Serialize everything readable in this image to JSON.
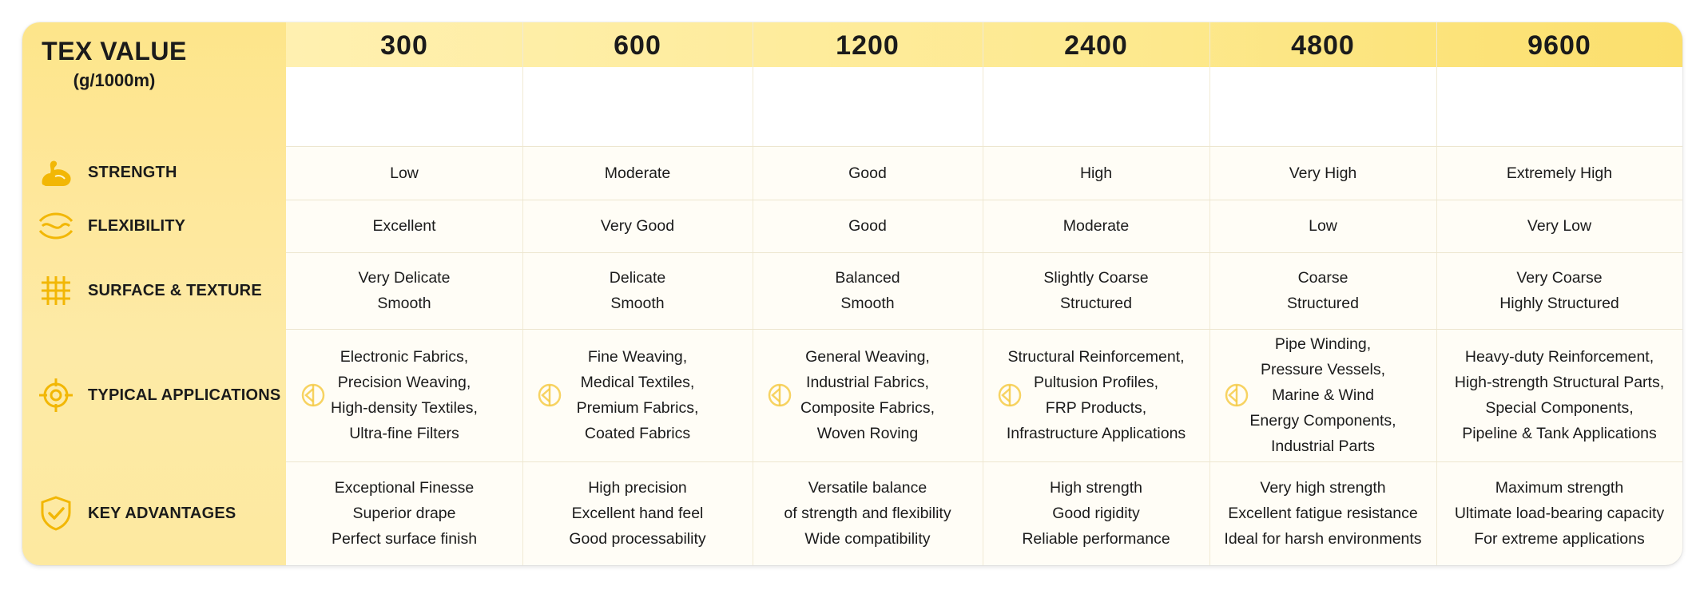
{
  "header": {
    "title": "TEX VALUE",
    "unit": "(g/1000m)"
  },
  "columns": [
    "300",
    "600",
    "1200",
    "2400",
    "4800",
    "9600"
  ],
  "rows": [
    {
      "label": "STRENGTH",
      "icon": "flexed-arm-icon",
      "cells": [
        [
          "Low"
        ],
        [
          "Moderate"
        ],
        [
          "Good"
        ],
        [
          "High"
        ],
        [
          "Very High"
        ],
        [
          "Extremely High"
        ]
      ]
    },
    {
      "label": "FLEXIBILITY",
      "icon": "flex-waves-icon",
      "cells": [
        [
          "Excellent"
        ],
        [
          "Very Good"
        ],
        [
          "Good"
        ],
        [
          "Moderate"
        ],
        [
          "Low"
        ],
        [
          "Very Low"
        ]
      ]
    },
    {
      "label": "SURFACE & TEXTURE",
      "icon": "grid-texture-icon",
      "cells": [
        [
          "Very Delicate",
          "Smooth"
        ],
        [
          "Delicate",
          "Smooth"
        ],
        [
          "Balanced",
          "Smooth"
        ],
        [
          "Slightly Coarse",
          "Structured"
        ],
        [
          "Coarse",
          "Structured"
        ],
        [
          "Very Coarse",
          "Highly Structured"
        ]
      ]
    },
    {
      "label": "TYPICAL APPLICATIONS",
      "icon": "target-icon",
      "cells": [
        [
          "Electronic Fabrics,",
          "Precision Weaving,",
          "High-density Textiles,",
          "Ultra-fine Filters"
        ],
        [
          "Fine Weaving,",
          "Medical Textiles,",
          "Premium Fabrics,",
          "Coated Fabrics"
        ],
        [
          "General Weaving,",
          "Industrial Fabrics,",
          "Composite Fabrics,",
          "Woven Roving"
        ],
        [
          "Structural Reinforcement,",
          "Pultusion Profiles,",
          "FRP Products,",
          "Infrastructure Applications"
        ],
        [
          "Pipe Winding,",
          "Pressure Vessels,",
          "Marine & Wind",
          "Energy Components,",
          "Industrial Parts"
        ],
        [
          "Heavy-duty Reinforcement,",
          "High-strength Structural Parts,",
          "Special Components,",
          "Pipeline & Tank Applications"
        ]
      ]
    },
    {
      "label": "KEY ADVANTAGES",
      "icon": "shield-check-icon",
      "cells": [
        [
          "Exceptional Finesse",
          "Superior drape",
          "Perfect surface finish"
        ],
        [
          "High precision",
          "Excellent hand feel",
          "Good processability"
        ],
        [
          "Versatile balance",
          "of strength and flexibility",
          "Wide compatibility"
        ],
        [
          "High strength",
          "Good rigidity",
          "Reliable performance"
        ],
        [
          "Very high strength",
          "Excellent fatigue resistance",
          "Ideal for harsh environments"
        ],
        [
          "Maximum strength",
          "Ultimate load-bearing capacity",
          "For extreme applications"
        ]
      ]
    }
  ],
  "colors": {
    "accent": "#f2b705",
    "header_yellow": "#fde98f",
    "text": "#1b1b1b"
  }
}
